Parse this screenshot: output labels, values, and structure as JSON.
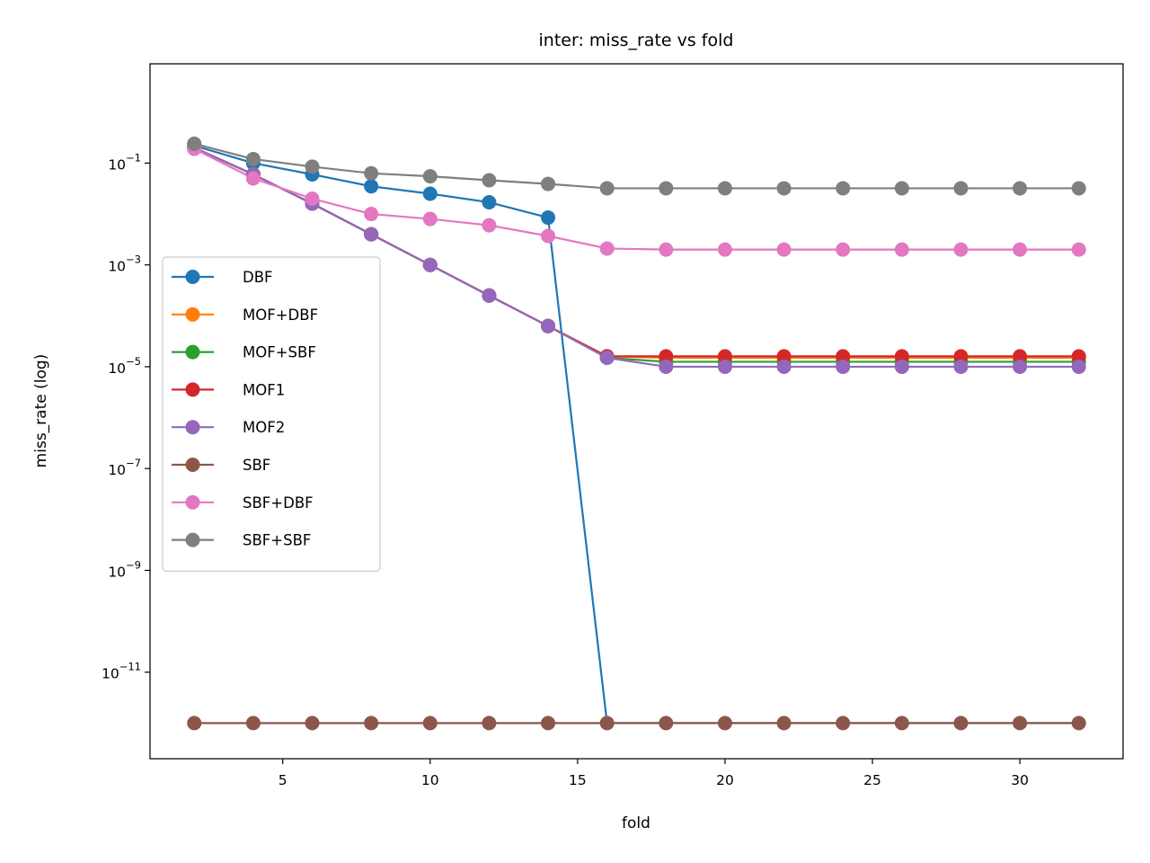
{
  "chart_data": {
    "type": "line",
    "title": "inter: miss_rate vs fold",
    "xlabel": "fold",
    "ylabel": "miss_rate (log)",
    "yscale": "log",
    "xlim": [
      0.5,
      33.5
    ],
    "ylim_exp": [
      -12.7,
      0.95
    ],
    "x_ticks": [
      5,
      10,
      15,
      20,
      25,
      30
    ],
    "y_tick_exponents": [
      -11,
      -9,
      -7,
      -5,
      -3,
      -1
    ],
    "legend_position": "center-left",
    "grid": false,
    "x": [
      2,
      4,
      6,
      8,
      10,
      12,
      14,
      16,
      18,
      20,
      22,
      24,
      26,
      28,
      30,
      32
    ],
    "series": [
      {
        "name": "DBF",
        "color": "#1f77b4",
        "values": [
          0.22,
          0.1,
          0.06,
          0.035,
          0.025,
          0.017,
          0.0085,
          1e-12,
          1e-12,
          1e-12,
          1e-12,
          1e-12,
          1e-12,
          1e-12,
          1e-12,
          1e-12
        ],
        "markers": [
          true,
          true,
          true,
          true,
          true,
          true,
          true,
          false,
          false,
          false,
          false,
          false,
          false,
          false,
          false,
          false
        ]
      },
      {
        "name": "MOF+DBF",
        "color": "#ff7f0e",
        "values": [
          0.2,
          0.06,
          0.016,
          0.004,
          0.001,
          0.00025,
          6.3e-05,
          1.6e-05,
          1.5e-05,
          1.5e-05,
          1.5e-05,
          1.5e-05,
          1.5e-05,
          1.5e-05,
          1.5e-05,
          1.5e-05
        ]
      },
      {
        "name": "MOF+SBF",
        "color": "#2ca02c",
        "values": [
          0.2,
          0.06,
          0.016,
          0.004,
          0.001,
          0.00025,
          6.3e-05,
          1.5e-05,
          1.25e-05,
          1.25e-05,
          1.25e-05,
          1.25e-05,
          1.25e-05,
          1.25e-05,
          1.25e-05,
          1.25e-05
        ]
      },
      {
        "name": "MOF1",
        "color": "#d62728",
        "values": [
          0.2,
          0.06,
          0.016,
          0.004,
          0.001,
          0.00025,
          6.3e-05,
          1.6e-05,
          1.6e-05,
          1.6e-05,
          1.6e-05,
          1.6e-05,
          1.6e-05,
          1.6e-05,
          1.6e-05,
          1.6e-05
        ]
      },
      {
        "name": "MOF2",
        "color": "#9467bd",
        "values": [
          0.2,
          0.06,
          0.016,
          0.004,
          0.001,
          0.00025,
          6.3e-05,
          1.5e-05,
          1e-05,
          1e-05,
          1e-05,
          1e-05,
          1e-05,
          1e-05,
          1e-05,
          1e-05
        ]
      },
      {
        "name": "SBF",
        "color": "#8c564b",
        "values": [
          1e-12,
          1e-12,
          1e-12,
          1e-12,
          1e-12,
          1e-12,
          1e-12,
          1e-12,
          1e-12,
          1e-12,
          1e-12,
          1e-12,
          1e-12,
          1e-12,
          1e-12,
          1e-12
        ]
      },
      {
        "name": "SBF+DBF",
        "color": "#e377c2",
        "values": [
          0.19,
          0.05,
          0.02,
          0.01,
          0.008,
          0.006,
          0.0037,
          0.0021,
          0.002,
          0.002,
          0.002,
          0.002,
          0.002,
          0.002,
          0.002,
          0.002
        ]
      },
      {
        "name": "SBF+SBF",
        "color": "#7f7f7f",
        "values": [
          0.24,
          0.12,
          0.085,
          0.063,
          0.055,
          0.046,
          0.039,
          0.032,
          0.032,
          0.032,
          0.032,
          0.032,
          0.032,
          0.032,
          0.032,
          0.032
        ]
      }
    ]
  }
}
